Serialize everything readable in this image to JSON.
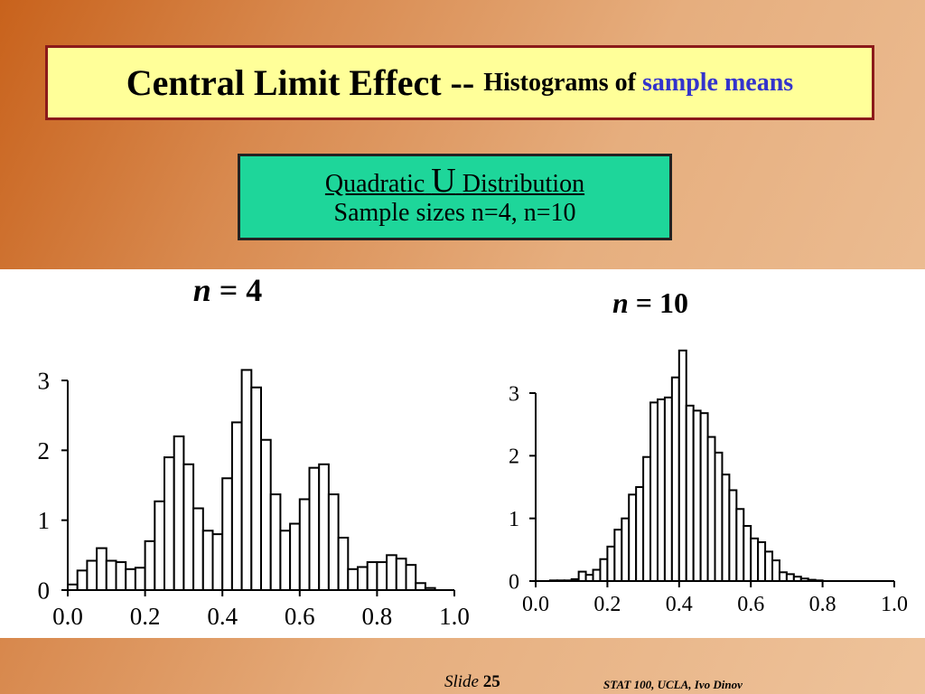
{
  "title": {
    "main": "Central Limit Effect --",
    "sub": "Histograms of",
    "accent": "sample means",
    "accent_color": "#3333cc"
  },
  "distribution": {
    "line1_prefix": "Quadratic",
    "line1_symbol": "U",
    "line1_suffix": "Distribution",
    "line2": "Sample sizes n=4, n=10"
  },
  "chart_data": [
    {
      "type": "bar",
      "title": "n = 4",
      "title_var": "n",
      "title_rest": " = 4",
      "xlim": [
        0.0,
        1.0
      ],
      "ylim": [
        0,
        3
      ],
      "xticks": [
        "0.0",
        "0.2",
        "0.4",
        "0.6",
        "0.8",
        "1.0"
      ],
      "yticks": [
        "0",
        "1",
        "2",
        "3"
      ],
      "bin_width": 0.025,
      "values": [
        0.08,
        0.28,
        0.42,
        0.6,
        0.42,
        0.4,
        0.3,
        0.32,
        0.7,
        1.27,
        1.9,
        2.2,
        1.8,
        1.17,
        0.85,
        0.8,
        1.6,
        2.4,
        3.15,
        2.9,
        2.15,
        1.37,
        0.85,
        0.95,
        1.3,
        1.75,
        1.8,
        1.37,
        0.75,
        0.3,
        0.33,
        0.4,
        0.4,
        0.5,
        0.45,
        0.36,
        0.1,
        0.03
      ],
      "grid": false
    },
    {
      "type": "bar",
      "title": "n = 10",
      "title_var": "n",
      "title_rest": " = 10",
      "xlim": [
        0.0,
        1.0
      ],
      "ylim": [
        0,
        3
      ],
      "xticks": [
        "0.0",
        "0.2",
        "0.4",
        "0.6",
        "0.8",
        "1.0"
      ],
      "yticks": [
        "0",
        "1",
        "2",
        "3"
      ],
      "bin_width": 0.02,
      "values": [
        0.0,
        0.0,
        0.01,
        0.01,
        0.01,
        0.03,
        0.15,
        0.1,
        0.18,
        0.35,
        0.55,
        0.82,
        1.0,
        1.38,
        1.5,
        1.98,
        2.85,
        2.9,
        2.93,
        3.25,
        3.68,
        2.8,
        2.72,
        2.68,
        2.3,
        2.05,
        1.7,
        1.45,
        1.15,
        0.88,
        0.68,
        0.62,
        0.47,
        0.33,
        0.14,
        0.11,
        0.07,
        0.04,
        0.02,
        0.01
      ],
      "grid": false
    }
  ],
  "footer": {
    "slide_label": "Slide",
    "slide_number": "25",
    "credit": "STAT 100, UCLA, Ivo Dinov"
  }
}
